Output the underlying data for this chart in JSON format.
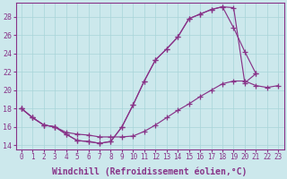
{
  "background_color": "#cce8ec",
  "grid_color": "#a8d4d8",
  "line_color": "#883388",
  "xlabel": "Windchill (Refroidissement éolien,°C)",
  "xlabel_fontsize": 7.0,
  "xtick_fontsize": 5.5,
  "ytick_fontsize": 6.0,
  "ylim": [
    13.5,
    29.5
  ],
  "xlim": [
    -0.5,
    23.5
  ],
  "yticks": [
    14,
    16,
    18,
    20,
    22,
    24,
    26,
    28
  ],
  "xticks": [
    0,
    1,
    2,
    3,
    4,
    5,
    6,
    7,
    8,
    9,
    10,
    11,
    12,
    13,
    14,
    15,
    16,
    17,
    18,
    19,
    20,
    21,
    22,
    23
  ],
  "curveA_x": [
    0,
    1,
    2,
    3,
    4,
    5,
    6,
    7,
    8,
    9,
    10,
    11,
    12,
    13,
    14,
    15,
    16,
    17,
    18,
    19,
    20,
    21
  ],
  "curveA_y": [
    18.0,
    17.0,
    16.2,
    16.0,
    15.2,
    14.5,
    14.4,
    14.2,
    14.4,
    16.0,
    18.4,
    21.0,
    23.3,
    24.5,
    25.8,
    27.8,
    28.3,
    28.8,
    29.1,
    29.0,
    20.8,
    21.8
  ],
  "curveB_x": [
    0,
    1,
    2,
    3,
    4,
    5,
    6,
    7,
    8,
    9,
    10,
    11,
    12,
    13,
    14,
    15,
    16,
    17,
    18,
    19,
    20,
    21,
    22,
    23
  ],
  "curveB_y": [
    18.0,
    17.0,
    16.2,
    16.0,
    15.4,
    15.2,
    15.1,
    14.9,
    14.9,
    14.9,
    15.0,
    15.5,
    16.2,
    17.0,
    17.8,
    18.5,
    19.3,
    20.0,
    20.7,
    21.0,
    21.0,
    20.5,
    20.3,
    20.5
  ],
  "curveC_x": [
    0,
    1,
    2,
    3,
    4,
    5,
    6,
    7,
    8,
    9,
    10,
    11,
    12,
    13,
    14,
    15,
    16,
    17,
    18,
    19,
    20,
    21
  ],
  "curveC_y": [
    18.0,
    17.0,
    16.2,
    16.0,
    15.2,
    14.5,
    14.4,
    14.2,
    14.4,
    16.0,
    18.4,
    21.0,
    23.3,
    24.5,
    25.8,
    27.8,
    28.3,
    28.8,
    29.1,
    26.8,
    24.2,
    21.8
  ]
}
